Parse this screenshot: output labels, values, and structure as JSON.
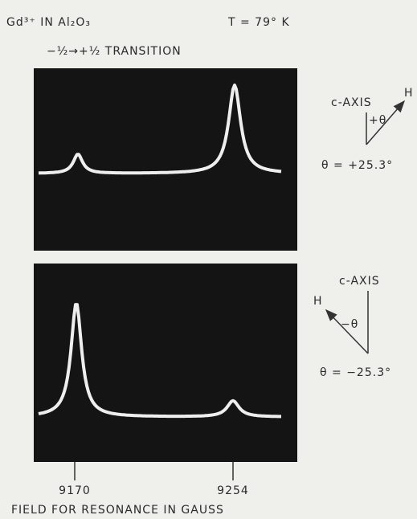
{
  "header": {
    "sample": "Gd³⁺ IN Al₂O₃",
    "temperature": "T = 79° K",
    "transition": "−½→+½ TRANSITION"
  },
  "panels": [
    {
      "axis_label": "c-AXIS",
      "field_label": "H",
      "angle_symbol": "+θ",
      "angle": "θ = +25.3°"
    },
    {
      "axis_label": "c-AXIS",
      "field_label": "H",
      "angle_symbol": "−θ",
      "angle": "θ = −25.3°"
    }
  ],
  "field_ticks": [
    "9170",
    "9254"
  ],
  "x_label": "FIELD FOR RESONANCE IN GAUSS"
}
